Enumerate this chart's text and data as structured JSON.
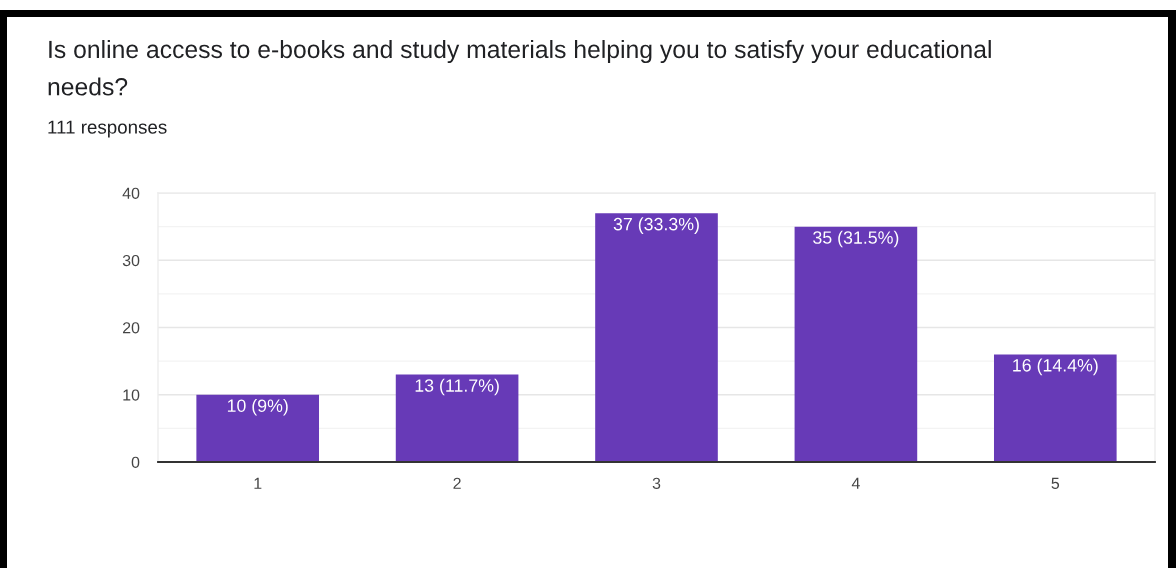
{
  "chart_data": {
    "type": "bar",
    "title": "Is online access to e-books and study materials helping you to satisfy your educational\nneeds?",
    "subtitle": "111 responses",
    "categories": [
      "1",
      "2",
      "3",
      "4",
      "5"
    ],
    "values": [
      10,
      13,
      37,
      35,
      16
    ],
    "value_labels": [
      "10 (9%)",
      "13 (11.7%)",
      "37 (33.3%)",
      "35 (31.5%)",
      "16 (14.4%)"
    ],
    "color": "#673ab7",
    "ylim": [
      0,
      40
    ],
    "yticks": [
      0,
      {
        "value": 5,
        "label": null
      },
      10,
      {
        "value": 15,
        "label": null
      },
      20,
      {
        "value": 25,
        "label": null
      },
      30,
      {
        "value": 35,
        "label": null
      },
      40
    ],
    "grid": "y"
  }
}
